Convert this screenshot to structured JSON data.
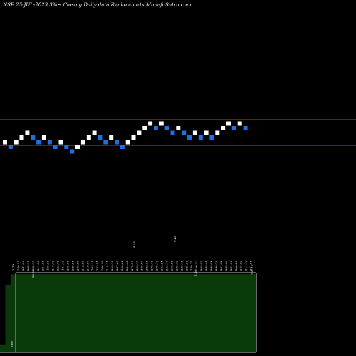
{
  "header": {
    "title": "NSE 25-JUL-2023 3%~  Closing Daily data  Renko  charts MunafaSutra.com"
  },
  "colors": {
    "background": "#000000",
    "up": "#ffffff",
    "down": "#1e6fe0",
    "line": "#c8751c",
    "volume_fill": "#0a3a0a",
    "volume_stroke": "#ffffff"
  },
  "chart_data": {
    "type": "renko",
    "title": "NSE 25-JUL-2023 3%~  Closing Daily data  Renko  charts MunafaSutra.com",
    "brick_size_label": "3%",
    "grid": false,
    "horizontal_lines": [
      "upper",
      "lower"
    ],
    "bricks": [
      {
        "dir": "up",
        "level": 3
      },
      {
        "dir": "down",
        "level": 2
      },
      {
        "dir": "up",
        "level": 3
      },
      {
        "dir": "up",
        "level": 4
      },
      {
        "dir": "up",
        "level": 5
      },
      {
        "dir": "down",
        "level": 4
      },
      {
        "dir": "down",
        "level": 3
      },
      {
        "dir": "up",
        "level": 4
      },
      {
        "dir": "down",
        "level": 3
      },
      {
        "dir": "down",
        "level": 2
      },
      {
        "dir": "up",
        "level": 3
      },
      {
        "dir": "down",
        "level": 2
      },
      {
        "dir": "down",
        "level": 1
      },
      {
        "dir": "up",
        "level": 2
      },
      {
        "dir": "up",
        "level": 3
      },
      {
        "dir": "up",
        "level": 4
      },
      {
        "dir": "up",
        "level": 5
      },
      {
        "dir": "down",
        "level": 4
      },
      {
        "dir": "down",
        "level": 3
      },
      {
        "dir": "up",
        "level": 4
      },
      {
        "dir": "down",
        "level": 3
      },
      {
        "dir": "down",
        "level": 2
      },
      {
        "dir": "up",
        "level": 3
      },
      {
        "dir": "up",
        "level": 4
      },
      {
        "dir": "up",
        "level": 5
      },
      {
        "dir": "up",
        "level": 6
      },
      {
        "dir": "up",
        "level": 7
      },
      {
        "dir": "down",
        "level": 6
      },
      {
        "dir": "up",
        "level": 7
      },
      {
        "dir": "down",
        "level": 6
      },
      {
        "dir": "down",
        "level": 5
      },
      {
        "dir": "up",
        "level": 6
      },
      {
        "dir": "down",
        "level": 5
      },
      {
        "dir": "down",
        "level": 4
      },
      {
        "dir": "up",
        "level": 5
      },
      {
        "dir": "down",
        "level": 4
      },
      {
        "dir": "up",
        "level": 5
      },
      {
        "dir": "down",
        "level": 4
      },
      {
        "dir": "up",
        "level": 5
      },
      {
        "dir": "up",
        "level": 6
      },
      {
        "dir": "up",
        "level": 7
      },
      {
        "dir": "down",
        "level": 6
      },
      {
        "dir": "up",
        "level": 7
      },
      {
        "dir": "down",
        "level": 6
      }
    ],
    "date_labels": [
      "2.29",
      "246.45",
      "241.96",
      "232.75",
      "232.75",
      "211.98",
      "234.58",
      "196.66",
      "218.73",
      "233.40",
      "191.43",
      "205.60",
      "220.55",
      "208.90",
      "212.09",
      "219.97",
      "205.38",
      "223.91",
      "206.56",
      "218.71",
      "205.10",
      "237.69",
      "208.62",
      "234.44",
      "272.99",
      "265.17",
      "300.07",
      "292.65",
      "278.40",
      "270.10",
      "263.55",
      "253.17",
      "258.08",
      "236.42",
      "238.46",
      "225.66",
      "229.79",
      "250.53",
      "265.99",
      "245.44",
      "245.92",
      "240.76",
      "261.32",
      "232.63",
      "231.90",
      "286.26",
      "246.92",
      "211.12",
      "241.05"
    ],
    "volume_labels": [
      "5.00",
      "29.50",
      "0.25",
      "5.46",
      "33.99",
      "223.25"
    ],
    "volume_bars": [
      {
        "label": "5.00",
        "value": 0.1
      },
      {
        "label": "29.50",
        "value": 0.85
      },
      {
        "label": "",
        "value": 0.98
      },
      {
        "label": "",
        "value": 0.98
      },
      {
        "label": "",
        "value": 0.98
      },
      {
        "label": "",
        "value": 0.98
      },
      {
        "label": "",
        "value": 0.98
      },
      {
        "label": "",
        "value": 0.98
      },
      {
        "label": "",
        "value": 0.98
      },
      {
        "label": "",
        "value": 0.98
      },
      {
        "label": "",
        "value": 0.98
      },
      {
        "label": "",
        "value": 0.98
      },
      {
        "label": "",
        "value": 0.98
      },
      {
        "label": "",
        "value": 0.98
      },
      {
        "label": "",
        "value": 0.98
      },
      {
        "label": "",
        "value": 0.98
      },
      {
        "label": "",
        "value": 0.98
      },
      {
        "label": "",
        "value": 0.98
      },
      {
        "label": "",
        "value": 0.98
      },
      {
        "label": "",
        "value": 0.98
      },
      {
        "label": "",
        "value": 0.98
      },
      {
        "label": "",
        "value": 0.98
      },
      {
        "label": "",
        "value": 0.98
      },
      {
        "label": "",
        "value": 0.98
      },
      {
        "label": "",
        "value": 0.98
      },
      {
        "label": "",
        "value": 0.98
      },
      {
        "label": "",
        "value": 0.98
      },
      {
        "label": "",
        "value": 0.98
      },
      {
        "label": "",
        "value": 0.98
      },
      {
        "label": "",
        "value": 0.98
      },
      {
        "label": "",
        "value": 0.98
      },
      {
        "label": "",
        "value": 0.98
      },
      {
        "label": "",
        "value": 0.98
      },
      {
        "label": "",
        "value": 0.98
      },
      {
        "label": "",
        "value": 0.98
      },
      {
        "label": "",
        "value": 0.98
      },
      {
        "label": "",
        "value": 0.98
      },
      {
        "label": "",
        "value": 0.98
      },
      {
        "label": "",
        "value": 0.98
      },
      {
        "label": "",
        "value": 0.98
      },
      {
        "label": "",
        "value": 0.98
      },
      {
        "label": "",
        "value": 0.98
      },
      {
        "label": "",
        "value": 0.98
      },
      {
        "label": "",
        "value": 0.98
      },
      {
        "label": "",
        "value": 0.98
      },
      {
        "label": "",
        "value": 0.98
      },
      {
        "label": "",
        "value": 0.98
      },
      {
        "label": "",
        "value": 0.98
      }
    ],
    "top_labels": [
      "9.45",
      "9.48"
    ]
  }
}
